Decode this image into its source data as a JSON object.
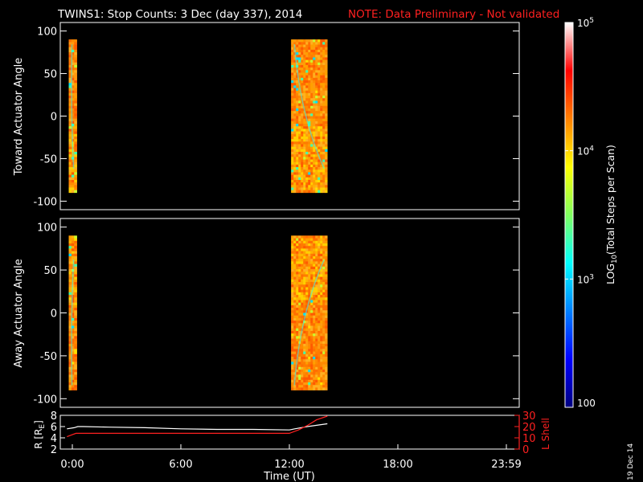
{
  "title": {
    "main": "TWINS1: Stop Counts:  3 Dec (day 337), 2014",
    "note": "NOTE: Data Preliminary - Not validated"
  },
  "footer_date": "19 Dec 14",
  "colors": {
    "background": "#000000",
    "note": "#ff2020",
    "axes": "#ffffff",
    "r_line": "#ffffff",
    "l_shell_line": "#ff2020"
  },
  "chart_data": [
    {
      "type": "heatmap",
      "ylabel": "Toward Actuator Angle",
      "ylim": [
        -110,
        110
      ],
      "yticks": [
        "100",
        "50",
        "0",
        "-50",
        "-100"
      ],
      "ytick_values": [
        100,
        50,
        0,
        -50,
        -100
      ],
      "x_ticks_visible": false,
      "xlim_hours": [
        0,
        24
      ],
      "data_intervals_hours": [
        [
          -0.2,
          0.25
        ],
        [
          12.1,
          14.1
        ]
      ],
      "angle_range": [
        -90,
        90
      ],
      "colorscale": "log10 (100 to 1e5)",
      "dominant_level": "~1e4.5 to 1e5 (orange-red)",
      "texture_seeds": [
        3,
        17
      ]
    },
    {
      "type": "heatmap",
      "ylabel": "Away Actuator Angle",
      "ylim": [
        -110,
        110
      ],
      "yticks": [
        "100",
        "50",
        "0",
        "-50",
        "-100"
      ],
      "ytick_values": [
        100,
        50,
        0,
        -50,
        -100
      ],
      "x_ticks_visible": false,
      "xlim_hours": [
        0,
        24
      ],
      "data_intervals_hours": [
        [
          -0.2,
          0.25
        ],
        [
          12.1,
          14.1
        ]
      ],
      "angle_range": [
        -90,
        90
      ],
      "colorscale": "log10 (100 to 1e5)",
      "dominant_level": "~1e4.5 to 1e5 (orange-red)",
      "texture_seeds": [
        29,
        41
      ]
    },
    {
      "type": "line",
      "xlabel": "Time (UT)",
      "xticks": [
        "0:00",
        "6:00",
        "12:00",
        "18:00",
        "23:59"
      ],
      "xtick_hours": [
        0,
        6,
        12,
        18,
        24
      ],
      "xlim_hours": [
        0,
        24
      ],
      "left_axis": {
        "label": "R [R",
        "label_sub": "E",
        "label_end": "]",
        "ylim": [
          2,
          8
        ],
        "yticks": [
          "8",
          "6",
          "4",
          "2"
        ],
        "ytick_values": [
          8,
          6,
          4,
          2
        ]
      },
      "right_axis": {
        "label": "L Shell",
        "ylim": [
          0,
          30
        ],
        "yticks": [
          "30",
          "20",
          "10",
          "0"
        ],
        "ytick_values": [
          30,
          20,
          10,
          0
        ]
      },
      "series": [
        {
          "name": "R",
          "axis": "left",
          "color": "#ffffff",
          "x": [
            -0.3,
            0.1,
            0.3,
            0.6,
            2,
            4,
            6,
            8,
            10,
            12,
            12.3,
            13,
            14.1
          ],
          "y": [
            5.6,
            5.8,
            6.0,
            6.0,
            5.9,
            5.8,
            5.6,
            5.5,
            5.5,
            5.4,
            5.6,
            6.0,
            6.5
          ]
        },
        {
          "name": "L Shell",
          "axis": "right",
          "color": "#ff2020",
          "x": [
            -0.3,
            0.2,
            0.5,
            2,
            4,
            6,
            8,
            10,
            12,
            12.5,
            13,
            13.5,
            14.1
          ],
          "y": [
            11,
            14,
            14,
            14,
            14,
            14,
            14,
            14,
            14,
            17,
            21,
            26,
            31
          ]
        }
      ]
    },
    {
      "type": "heatmap",
      "role": "colorbar",
      "label": "LOG",
      "label_sub": "10",
      "label_rest": "(Total Steps per Scan)",
      "range": [
        100,
        100000
      ],
      "tick_labels": [
        {
          "base": "10",
          "exp": "5"
        },
        {
          "base": "10",
          "exp": "4"
        },
        {
          "base": "10",
          "exp": "3"
        },
        {
          "base": "100",
          "exp": ""
        }
      ],
      "tick_values": [
        100000,
        10000,
        1000,
        100
      ],
      "stops": [
        "#ffffff",
        "#ff0000",
        "#ff8000",
        "#ffff00",
        "#80ff60",
        "#00ffff",
        "#0080ff",
        "#0000ff",
        "#000080"
      ]
    }
  ]
}
